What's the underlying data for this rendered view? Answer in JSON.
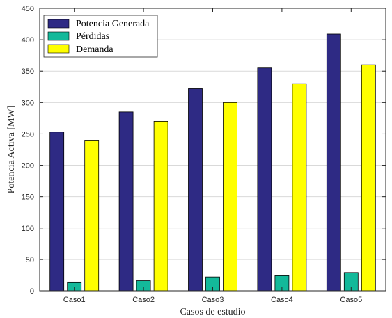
{
  "chart_data": {
    "type": "bar",
    "categories": [
      "Caso1",
      "Caso2",
      "Caso3",
      "Caso4",
      "Caso5"
    ],
    "series": [
      {
        "name": "Potencia Generada",
        "color": "#2e2a84",
        "values": [
          253,
          285,
          322,
          355,
          409
        ]
      },
      {
        "name": "Pérdidas",
        "color": "#13b99a",
        "values": [
          14,
          16,
          22,
          25,
          29
        ]
      },
      {
        "name": "Demanda",
        "color": "#ffff00",
        "values": [
          240,
          270,
          300,
          330,
          360
        ]
      }
    ],
    "xlabel": "Casos de estudio",
    "ylabel": "Potencia Activa [MW]",
    "ylim": [
      0,
      450
    ],
    "yticks": [
      0,
      50,
      100,
      150,
      200,
      250,
      300,
      350,
      400,
      450
    ],
    "grid": true,
    "legend_position": "top-left"
  }
}
